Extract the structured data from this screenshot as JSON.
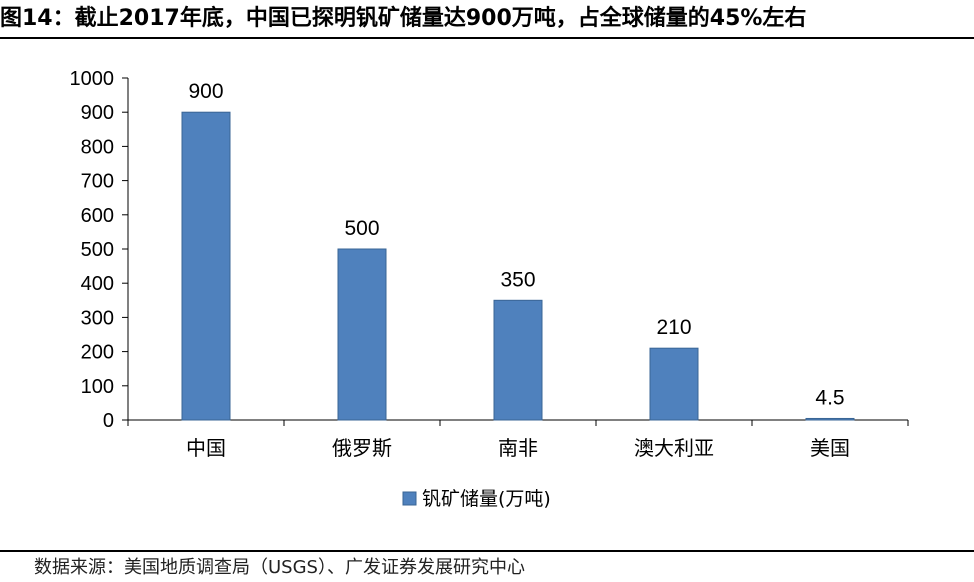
{
  "figure": {
    "title": "图14：截止2017年底，中国已探明钒矿储量达900万吨，占全球储量的45%左右",
    "source": "数据来源：美国地质调查局（USGS）、广发证券发展研究中心"
  },
  "chart_data": {
    "type": "bar",
    "title": "",
    "xlabel": "",
    "ylabel": "",
    "categories": [
      "中国",
      "俄罗斯",
      "南非",
      "澳大利亚",
      "美国"
    ],
    "series": [
      {
        "name": "钒矿储量(万吨)",
        "values": [
          900,
          500,
          350,
          210,
          4.5
        ],
        "color": "#4f81bd"
      }
    ],
    "ylim": [
      0,
      1000
    ],
    "yticks": [
      0,
      100,
      200,
      300,
      400,
      500,
      600,
      700,
      800,
      900,
      1000
    ],
    "data_labels": [
      "900",
      "500",
      "350",
      "210",
      "4.5"
    ],
    "grid": false,
    "legend": "bottom-center"
  }
}
